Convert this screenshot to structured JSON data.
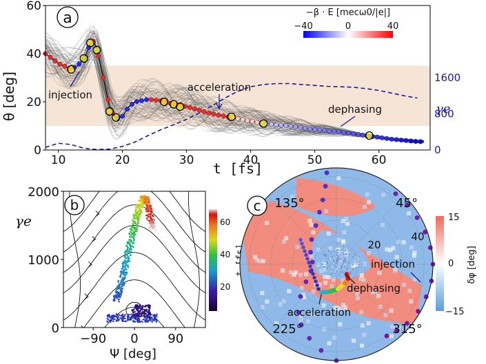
{
  "chart_data": [
    {
      "panel": "a",
      "type": "line",
      "xlabel_symbol": "t",
      "xlabel_unit": "[fs]",
      "ylabel_symbol": "θ",
      "ylabel_unit": "[deg]",
      "xlim": [
        8,
        68
      ],
      "ylim": [
        0,
        60
      ],
      "xticks": [
        10,
        20,
        30,
        40,
        50,
        60
      ],
      "yticks": [
        0,
        20,
        40,
        60
      ],
      "shaded_band": [
        10,
        35
      ],
      "secondary_axis": {
        "label": "γe",
        "ticks": [
          0,
          800,
          1600
        ],
        "range": [
          0,
          3200
        ]
      },
      "colorbar": {
        "label": "−β · E [mecω0/|e|]",
        "ticks": [
          "−40",
          "0",
          "40"
        ],
        "range": [
          -40,
          40
        ],
        "placement": "top-right"
      },
      "annotations": [
        "injection",
        "acceleration",
        "dephasing"
      ],
      "series": [
        {
          "kind": "trajectory",
          "x": [
            8,
            10,
            12,
            13,
            14,
            15,
            15.5,
            16,
            17,
            18,
            19,
            20,
            21,
            22,
            24,
            26,
            28,
            30,
            34,
            38,
            42,
            46,
            50,
            54,
            58,
            62,
            66
          ],
          "y": [
            40,
            36,
            33.5,
            35,
            38,
            44,
            45,
            42,
            30,
            18,
            13,
            14,
            18,
            20,
            21,
            20.5,
            19,
            18,
            15,
            13,
            11,
            10,
            8.5,
            7.5,
            6,
            4.5,
            3.5
          ]
        },
        {
          "kind": "gamma",
          "name": "γe",
          "x": [
            8,
            10,
            12,
            14,
            16,
            18,
            20,
            22,
            24,
            26,
            28,
            30,
            32,
            34,
            36,
            38,
            40,
            42,
            44,
            46,
            48,
            50,
            52,
            54,
            56,
            58,
            60,
            62,
            64,
            66
          ],
          "y": [
            60,
            150,
            120,
            40,
            10,
            20,
            80,
            180,
            320,
            450,
            560,
            680,
            820,
            980,
            1150,
            1300,
            1400,
            1450,
            1470,
            1470,
            1450,
            1430,
            1410,
            1400,
            1390,
            1360,
            1320,
            1260,
            1200,
            1150
          ]
        }
      ],
      "highlight_points": [
        [
          12,
          33.5
        ],
        [
          14,
          38
        ],
        [
          15,
          44.5
        ],
        [
          16,
          41.5
        ],
        [
          18,
          16
        ],
        [
          19,
          13.5
        ],
        [
          26.5,
          20
        ],
        [
          28,
          19
        ],
        [
          29,
          18
        ],
        [
          37,
          13.8
        ],
        [
          42,
          11
        ],
        [
          58.5,
          6
        ]
      ]
    },
    {
      "panel": "b",
      "type": "scatter",
      "xlabel": "Ψ [deg]",
      "ylabel_symbol": "γe",
      "xlim": [
        -155,
        155
      ],
      "ylim": [
        0,
        2000
      ],
      "xticks": [
        -90,
        0,
        90
      ],
      "xtick_labels": [
        "−90",
        "0",
        "90"
      ],
      "yticks": [
        0,
        1000,
        2000
      ],
      "colorbar": {
        "label": "t [fs]",
        "ticks": [
          20,
          40,
          60
        ],
        "range": [
          5,
          68
        ],
        "placement": "right"
      },
      "trail": {
        "psi": [
          -40,
          -35,
          -30,
          -25,
          -20,
          -15,
          -10,
          -5,
          0,
          5,
          10,
          15,
          20,
          25,
          30,
          35,
          40
        ],
        "gamma": [
          400,
          500,
          620,
          760,
          900,
          1050,
          1200,
          1350,
          1500,
          1620,
          1740,
          1840,
          1900,
          1880,
          1780,
          1600,
          1450
        ],
        "time": [
          22,
          24,
          26,
          28,
          30,
          32,
          35,
          38,
          41,
          44,
          47,
          50,
          54,
          58,
          62,
          65,
          68
        ]
      }
    },
    {
      "panel": "c",
      "type": "scatter",
      "projection": "polar",
      "angle_labels": [
        "45°",
        "135°",
        "225°",
        "315°"
      ],
      "radial_labels": [
        "20",
        "40"
      ],
      "rmax": 44,
      "colorbar": {
        "label": "δφ [deg]",
        "ticks": [
          "15",
          "0",
          "−15"
        ],
        "range": [
          -15,
          15
        ],
        "placement": "right"
      },
      "annotations": [
        "injection",
        "dephasing",
        "acceleration"
      ],
      "points": [
        {
          "angle": 305,
          "r": 40
        },
        {
          "angle": 312,
          "r": 41
        },
        {
          "angle": 320,
          "r": 42
        },
        {
          "angle": 330,
          "r": 43
        },
        {
          "angle": 340,
          "r": 43.5
        },
        {
          "angle": 350,
          "r": 44
        },
        {
          "angle": 0,
          "r": 44
        },
        {
          "angle": 10,
          "r": 43.5
        },
        {
          "angle": 20,
          "r": 43
        },
        {
          "angle": 30,
          "r": 42.5
        },
        {
          "angle": 40,
          "r": 42
        },
        {
          "angle": 50,
          "r": 42
        },
        {
          "angle": 270,
          "r": 44
        },
        {
          "angle": 260,
          "r": 40
        },
        {
          "angle": 250,
          "r": 36
        },
        {
          "angle": 240,
          "r": 32
        },
        {
          "angle": 232,
          "r": 28
        },
        {
          "angle": 222,
          "r": 22
        },
        {
          "angle": 210,
          "r": 16
        },
        {
          "angle": 195,
          "r": 12
        },
        {
          "angle": 175,
          "r": 11
        },
        {
          "angle": 155,
          "r": 13
        },
        {
          "angle": 135,
          "r": 16
        },
        {
          "angle": 118,
          "r": 20
        },
        {
          "angle": 108,
          "r": 25
        },
        {
          "angle": 102,
          "r": 30
        },
        {
          "angle": 98,
          "r": 36
        },
        {
          "angle": 96,
          "r": 42
        }
      ]
    }
  ],
  "labels": {
    "panel_a": "a",
    "panel_b": "b",
    "panel_c": "c",
    "injection": "injection",
    "acceleration": "acceleration",
    "dephasing": "dephasing",
    "gamma_label": "γe",
    "a_xlabel": "t [fs]",
    "a_ylabel": "θ [deg]",
    "b_xlabel": "Ψ [deg]",
    "b_ylabel": "γe",
    "b_cbar_label": "t [fs]",
    "c_cbar_label": "δφ [deg]"
  },
  "colors": {
    "band": "#f6e4d6",
    "gamma_line": "#1a1a99",
    "highlight": "#f2e21c",
    "polar_red": "#f28c7e",
    "polar_blue": "#8fb9e8"
  }
}
